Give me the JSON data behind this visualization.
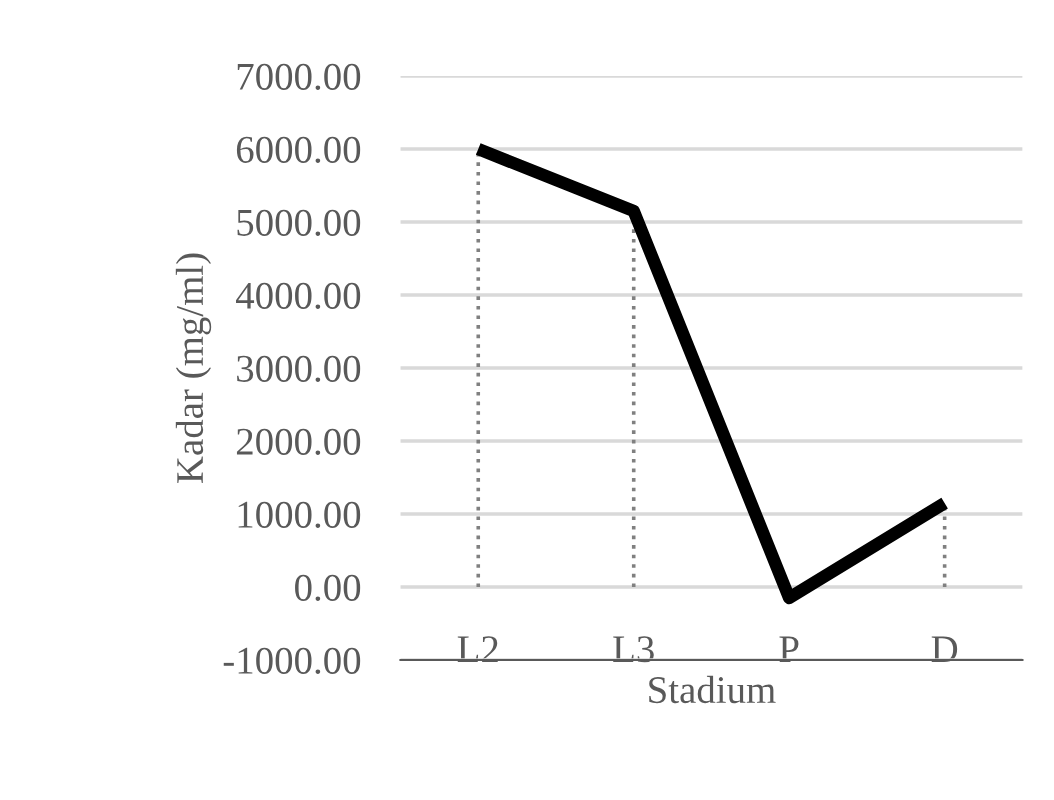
{
  "chart_data": {
    "type": "line",
    "xlabel": "Stadium",
    "ylabel": "Kadar (mg/ml)",
    "categories": [
      "L2",
      "L3",
      "P",
      "D"
    ],
    "series": [
      {
        "color": "#000000",
        "values": [
          6000,
          5150,
          -150,
          1150
        ],
        "errors": [
          [
            0,
            6000
          ],
          [
            0,
            5150
          ],
          null,
          [
            0,
            1150
          ]
        ]
      }
    ],
    "ylim": [
      -1000,
      7000
    ],
    "yticks": [
      {
        "value": 7000,
        "label": "7000.00"
      },
      {
        "value": 6000,
        "label": "6000.00"
      },
      {
        "value": 5000,
        "label": "5000.00"
      },
      {
        "value": 4000,
        "label": "4000.00"
      },
      {
        "value": 3000,
        "label": "3000.00"
      },
      {
        "value": 2000,
        "label": "2000.00"
      },
      {
        "value": 1000,
        "label": "1000.00"
      },
      {
        "value": 0,
        "label": "0.00"
      },
      {
        "value": -1000,
        "label": "-1000.00"
      }
    ],
    "grid": "y",
    "marker": "none",
    "line_style": "solid"
  }
}
